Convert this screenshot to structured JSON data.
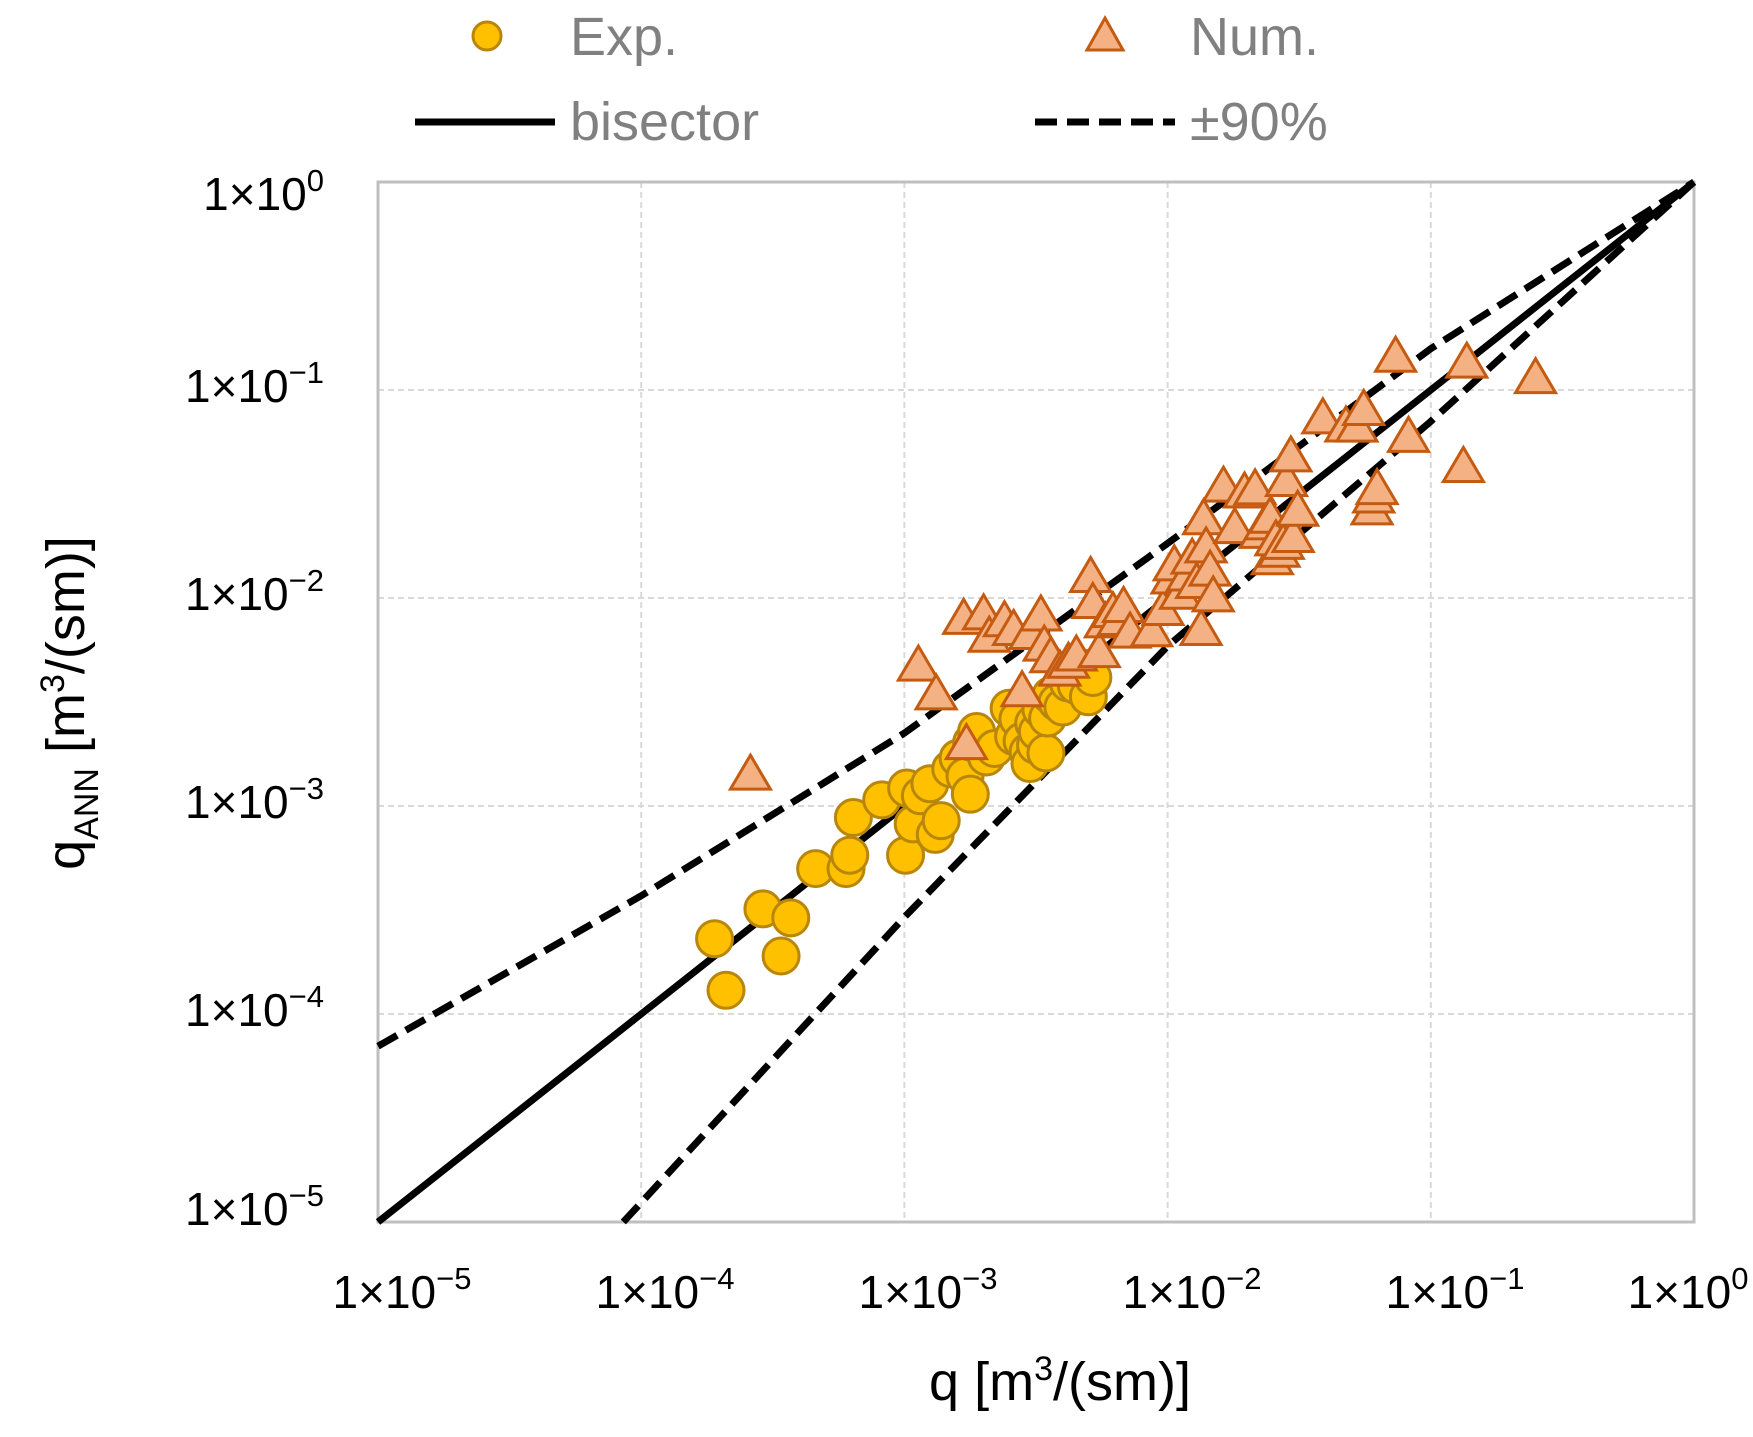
{
  "chart_data": {
    "type": "scatter",
    "x_scale": "log",
    "y_scale": "log",
    "xlim": [
      1e-05,
      1
    ],
    "ylim": [
      1e-05,
      1
    ],
    "grid": true,
    "legend_position": "top",
    "xlabel": {
      "main": "q [m",
      "sup": "3",
      "tail": "/(sm)]"
    },
    "ylabel": {
      "main": "q",
      "sub": "ANN",
      "mid": " [m",
      "sup": "3",
      "tail": "/(sm)]"
    },
    "x_ticks": [
      {
        "value": 1e-05,
        "base": "1×10",
        "exp": "−5"
      },
      {
        "value": 0.0001,
        "base": "1×10",
        "exp": "−4"
      },
      {
        "value": 0.001,
        "base": "1×10",
        "exp": "−3"
      },
      {
        "value": 0.01,
        "base": "1×10",
        "exp": "−2"
      },
      {
        "value": 0.1,
        "base": "1×10",
        "exp": "−1"
      },
      {
        "value": 1,
        "base": "1×10",
        "exp": "0"
      }
    ],
    "y_ticks": [
      {
        "value": 1e-05,
        "base": "1×10",
        "exp": "−5"
      },
      {
        "value": 0.0001,
        "base": "1×10",
        "exp": "−4"
      },
      {
        "value": 0.001,
        "base": "1×10",
        "exp": "−3"
      },
      {
        "value": 0.01,
        "base": "1×10",
        "exp": "−2"
      },
      {
        "value": 0.1,
        "base": "1×10",
        "exp": "−1"
      },
      {
        "value": 1,
        "base": "1×10",
        "exp": "0"
      }
    ],
    "legend": {
      "exp": "Exp.",
      "num": "Num.",
      "bisector": "bisector",
      "band": "±90%"
    },
    "lines": [
      {
        "name": "bisector",
        "style": "solid",
        "points": [
          [
            1e-05,
            1e-05
          ],
          [
            1,
            1
          ]
        ]
      },
      {
        "name": "upper-90",
        "style": "dashed",
        "points": [
          [
            1e-05,
            7e-05
          ],
          [
            0.0001,
            0.00037
          ],
          [
            0.001,
            0.00224
          ],
          [
            0.01,
            0.0183
          ],
          [
            0.1,
            0.158
          ],
          [
            1,
            1
          ]
        ]
      },
      {
        "name": "lower-90",
        "style": "dashed",
        "points": [
          [
            8.55e-05,
            1e-05
          ],
          [
            0.001,
            0.000292
          ],
          [
            0.01,
            0.00586
          ],
          [
            0.1,
            0.0706
          ],
          [
            1,
            1
          ]
        ]
      }
    ],
    "series": [
      {
        "name": "Exp.",
        "marker": "circle",
        "fill": "#FFC000",
        "edge": "#B8860B",
        "points": [
          [
            0.00019,
            0.00023
          ],
          [
            0.00021,
            0.00013
          ],
          [
            0.00029,
            0.00032
          ],
          [
            0.00034,
            0.00019
          ],
          [
            0.00037,
            0.00029
          ],
          [
            0.00046,
            0.0005
          ],
          [
            0.0006,
            0.0005
          ],
          [
            0.00062,
            0.00058
          ],
          [
            0.00064,
            0.00088
          ],
          [
            0.00082,
            0.00107
          ],
          [
            0.00101,
            0.00058
          ],
          [
            0.00102,
            0.00122
          ],
          [
            0.00108,
            0.00082
          ],
          [
            0.00115,
            0.00112
          ],
          [
            0.00125,
            0.00128
          ],
          [
            0.00131,
            0.00073
          ],
          [
            0.00138,
            0.00085
          ],
          [
            0.0015,
            0.00151
          ],
          [
            0.0016,
            0.0017
          ],
          [
            0.0017,
            0.00139
          ],
          [
            0.00178,
            0.00114
          ],
          [
            0.0018,
            0.00202
          ],
          [
            0.00188,
            0.00228
          ],
          [
            0.00205,
            0.00172
          ],
          [
            0.0022,
            0.00189
          ],
          [
            0.0025,
            0.00295
          ],
          [
            0.0026,
            0.00216
          ],
          [
            0.0027,
            0.00262
          ],
          [
            0.0028,
            0.00205
          ],
          [
            0.00295,
            0.00182
          ],
          [
            0.003,
            0.0016
          ],
          [
            0.0031,
            0.0025
          ],
          [
            0.00315,
            0.00196
          ],
          [
            0.0032,
            0.00228
          ],
          [
            0.0033,
            0.00292
          ],
          [
            0.00345,
            0.0018
          ],
          [
            0.0035,
            0.00265
          ],
          [
            0.0036,
            0.0034
          ],
          [
            0.0038,
            0.00315
          ],
          [
            0.004,
            0.00299
          ],
          [
            0.0042,
            0.0039
          ],
          [
            0.0045,
            0.00379
          ],
          [
            0.0048,
            0.0046
          ],
          [
            0.005,
            0.00335
          ],
          [
            0.0052,
            0.00415
          ]
        ]
      },
      {
        "name": "Num.",
        "marker": "triangle",
        "fill": "#F4B183",
        "edge": "#C55A11",
        "points": [
          [
            0.00026,
            0.00139
          ],
          [
            0.00113,
            0.00465
          ],
          [
            0.00132,
            0.00338
          ],
          [
            0.00168,
            0.0078
          ],
          [
            0.00172,
            0.00195
          ],
          [
            0.002,
            0.0082
          ],
          [
            0.0021,
            0.0064
          ],
          [
            0.0024,
            0.0076
          ],
          [
            0.0026,
            0.0069
          ],
          [
            0.0028,
            0.0035
          ],
          [
            0.003,
            0.0066
          ],
          [
            0.0033,
            0.0081
          ],
          [
            0.0034,
            0.0058
          ],
          [
            0.0036,
            0.0051
          ],
          [
            0.0039,
            0.0044
          ],
          [
            0.0042,
            0.0048
          ],
          [
            0.0045,
            0.0052
          ],
          [
            0.0051,
            0.0124
          ],
          [
            0.0052,
            0.0093
          ],
          [
            0.0055,
            0.0054
          ],
          [
            0.0058,
            0.0075
          ],
          [
            0.0062,
            0.0084
          ],
          [
            0.0065,
            0.0077
          ],
          [
            0.0068,
            0.0089
          ],
          [
            0.0072,
            0.0067
          ],
          [
            0.0087,
            0.0068
          ],
          [
            0.0096,
            0.0086
          ],
          [
            0.0104,
            0.0122
          ],
          [
            0.0106,
            0.0141
          ],
          [
            0.0112,
            0.0103
          ],
          [
            0.0119,
            0.0126
          ],
          [
            0.0124,
            0.0152
          ],
          [
            0.0129,
            0.0116
          ],
          [
            0.0134,
            0.0069
          ],
          [
            0.0137,
            0.0235
          ],
          [
            0.014,
            0.0172
          ],
          [
            0.0145,
            0.0133
          ],
          [
            0.0149,
            0.01
          ],
          [
            0.0163,
            0.0337
          ],
          [
            0.018,
            0.0213
          ],
          [
            0.0196,
            0.0316
          ],
          [
            0.0215,
            0.0327
          ],
          [
            0.0225,
            0.0202
          ],
          [
            0.0235,
            0.0222
          ],
          [
            0.0245,
            0.0239
          ],
          [
            0.025,
            0.0151
          ],
          [
            0.0258,
            0.0186
          ],
          [
            0.0265,
            0.0164
          ],
          [
            0.0275,
            0.0179
          ],
          [
            0.0283,
            0.0359
          ],
          [
            0.0294,
            0.0471
          ],
          [
            0.03,
            0.0193
          ],
          [
            0.0312,
            0.0258
          ],
          [
            0.0389,
            0.0718
          ],
          [
            0.0476,
            0.0656
          ],
          [
            0.0524,
            0.0655
          ],
          [
            0.0556,
            0.0788
          ],
          [
            0.0598,
            0.0262
          ],
          [
            0.0607,
            0.0299
          ],
          [
            0.0625,
            0.0328
          ],
          [
            0.0823,
            0.0585
          ],
          [
            0.0735,
            0.142
          ],
          [
            0.137,
            0.133
          ],
          [
            0.133,
            0.0419
          ],
          [
            0.25,
            0.112
          ]
        ]
      }
    ]
  }
}
